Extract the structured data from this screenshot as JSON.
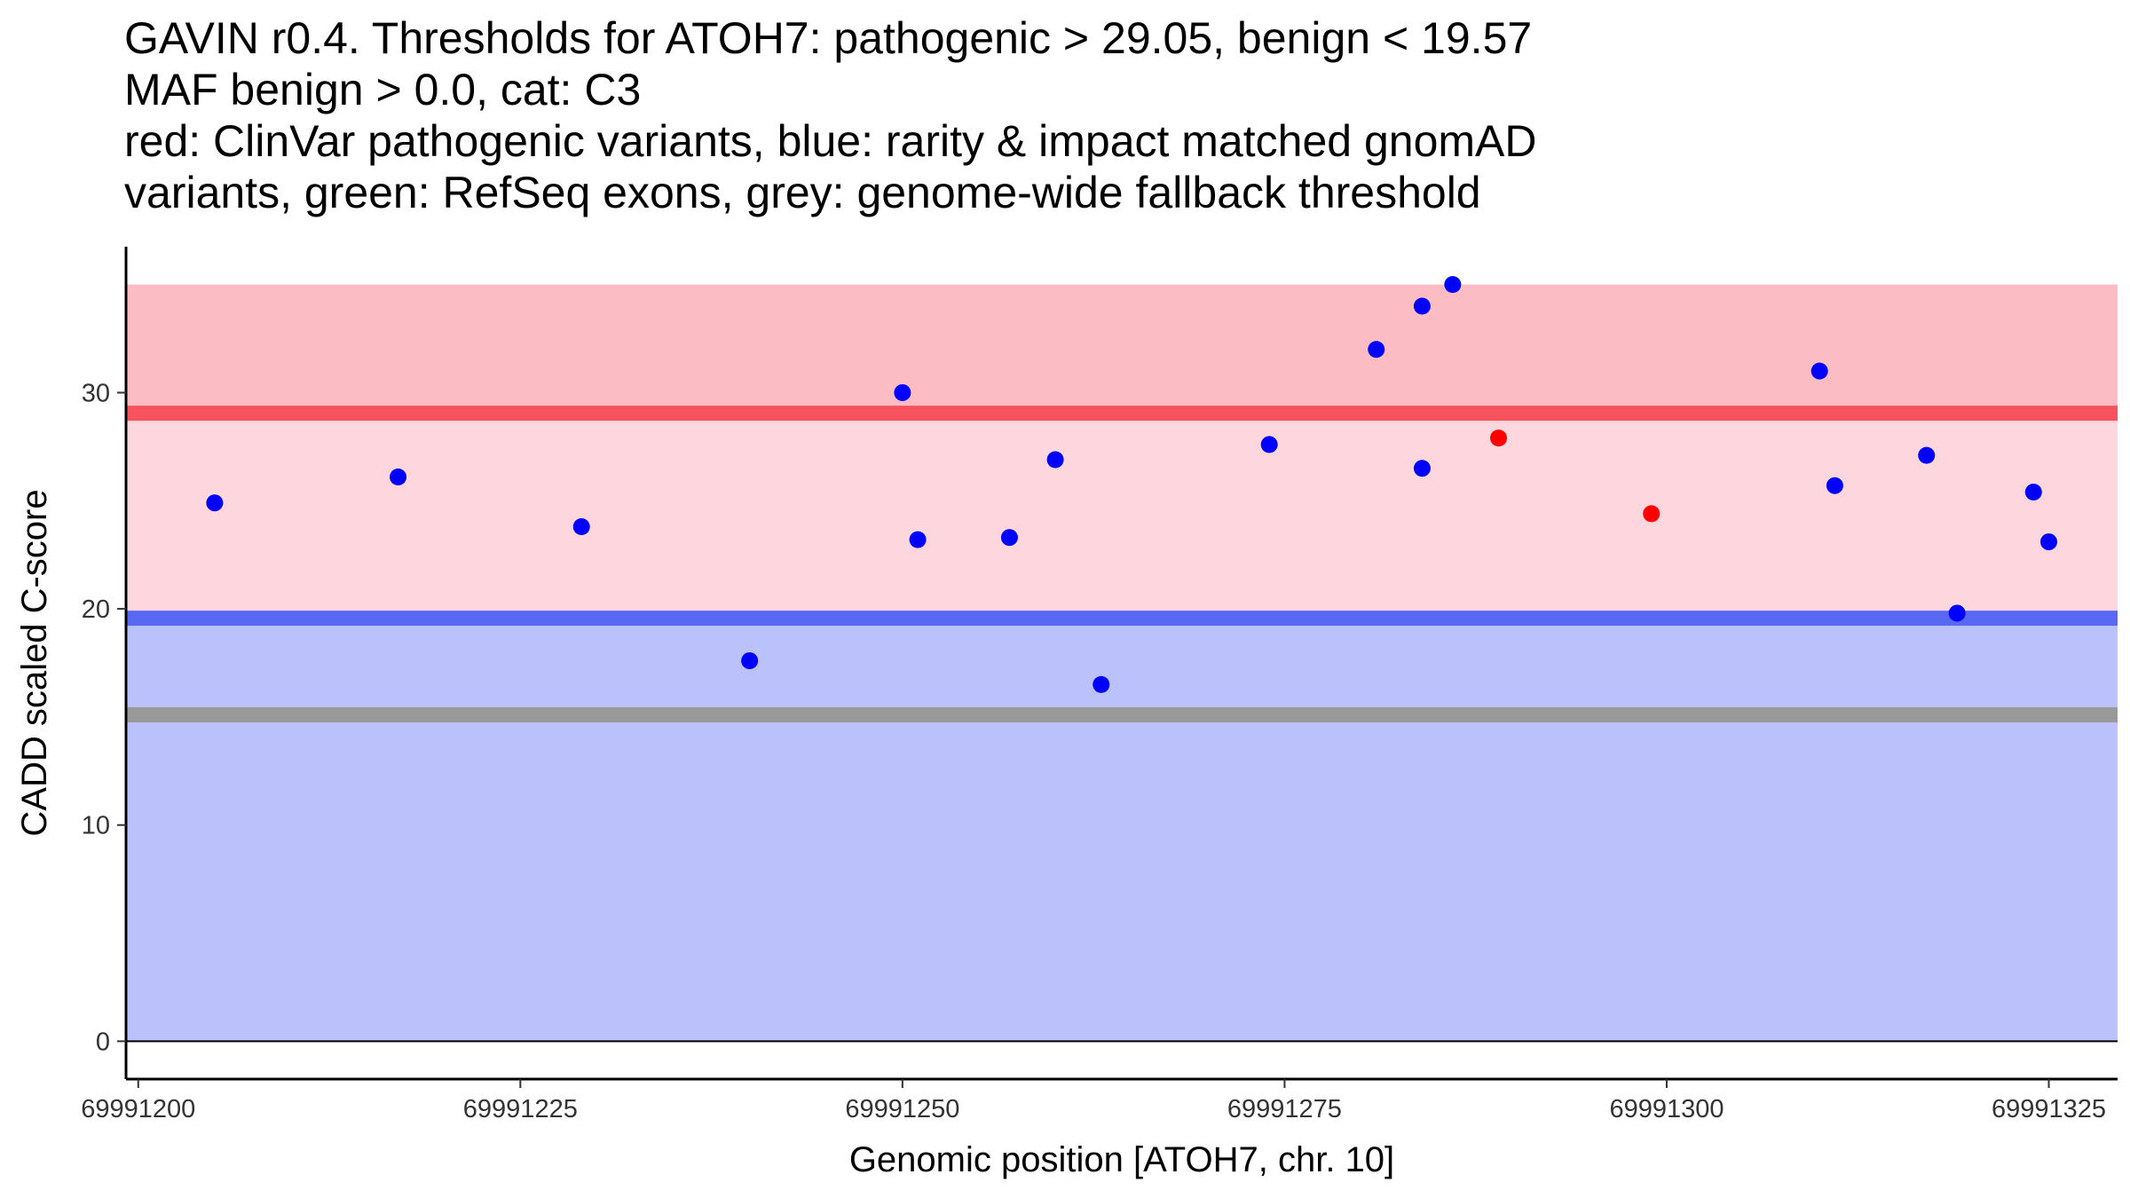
{
  "chart_data": {
    "type": "scatter",
    "title_lines": [
      "GAVIN r0.4. Thresholds for ATOH7: pathogenic > 29.05, benign < 19.57",
      "MAF benign > 0.0, cat: C3",
      "red: ClinVar pathogenic variants, blue: rarity & impact matched gnomAD",
      "variants, green: RefSeq exons, grey: genome-wide fallback threshold"
    ],
    "xlabel": "Genomic position [ATOH7, chr. 10]",
    "ylabel": "CADD scaled C-score",
    "xlim": [
      69991199.2,
      69991329.5
    ],
    "ylim": [
      -1.75,
      36.75
    ],
    "x_ticks": [
      69991200,
      69991225,
      69991250,
      69991275,
      69991300,
      69991325
    ],
    "x_tick_labels": [
      "69991200",
      "69991225",
      "69991250",
      "69991275",
      "69991300",
      "69991325"
    ],
    "y_ticks": [
      0,
      10,
      20,
      30
    ],
    "y_tick_labels": [
      "0",
      "10",
      "20",
      "30"
    ],
    "regions": [
      {
        "name": "pathogenic-region",
        "y_from": 29.05,
        "y_to": 35,
        "color": "#fcbcc4"
      },
      {
        "name": "uncertain-region",
        "y_from": 19.57,
        "y_to": 29.05,
        "color": "#fdd7dd"
      },
      {
        "name": "benign-region",
        "y_from": 0,
        "y_to": 19.57,
        "color": "#bbc1fa"
      }
    ],
    "threshold_lines": [
      {
        "name": "pathogenic-threshold",
        "y": 29.05,
        "color": "#f6535f"
      },
      {
        "name": "benign-threshold",
        "y": 19.57,
        "color": "#5868f3"
      },
      {
        "name": "fallback-threshold",
        "y": 15.1,
        "color": "#999999"
      }
    ],
    "baseline_y": 0,
    "series": [
      {
        "name": "gnomAD variants",
        "color": "#0000ff",
        "points": [
          {
            "x": 69991205,
            "y": 24.9
          },
          {
            "x": 69991217,
            "y": 26.1
          },
          {
            "x": 69991229,
            "y": 23.8
          },
          {
            "x": 69991240,
            "y": 17.6
          },
          {
            "x": 69991250,
            "y": 30.0
          },
          {
            "x": 69991251,
            "y": 23.2
          },
          {
            "x": 69991257,
            "y": 23.3
          },
          {
            "x": 69991260,
            "y": 26.9
          },
          {
            "x": 69991263,
            "y": 16.5
          },
          {
            "x": 69991274,
            "y": 27.6
          },
          {
            "x": 69991281,
            "y": 32.0
          },
          {
            "x": 69991284,
            "y": 34.0
          },
          {
            "x": 69991284,
            "y": 26.5
          },
          {
            "x": 69991286,
            "y": 35.0
          },
          {
            "x": 69991310,
            "y": 31.0
          },
          {
            "x": 69991311,
            "y": 25.7
          },
          {
            "x": 69991317,
            "y": 27.1
          },
          {
            "x": 69991319,
            "y": 19.8
          },
          {
            "x": 69991324,
            "y": 25.4
          },
          {
            "x": 69991325,
            "y": 23.1
          }
        ]
      },
      {
        "name": "ClinVar pathogenic variants",
        "color": "#ff0000",
        "points": [
          {
            "x": 69991289,
            "y": 27.9
          },
          {
            "x": 69991299,
            "y": 24.4
          }
        ]
      }
    ]
  }
}
